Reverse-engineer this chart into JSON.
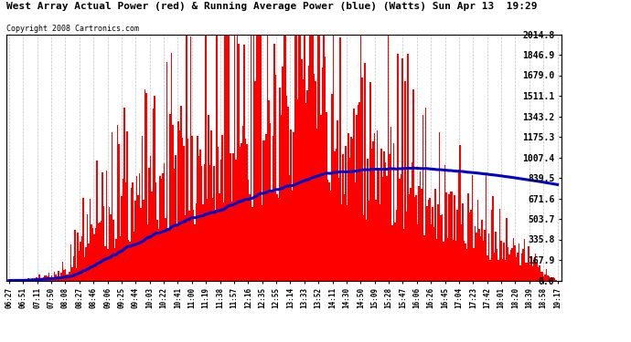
{
  "title": "West Array Actual Power (red) & Running Average Power (blue) (Watts) Sun Apr 13  19:29",
  "copyright": "Copyright 2008 Cartronics.com",
  "bg_color": "#ffffff",
  "plot_bg_color": "#ffffff",
  "grid_color": "#aaaaaa",
  "bar_color": "#ff0000",
  "line_color": "#0000cc",
  "yticks": [
    0.0,
    167.9,
    335.8,
    503.7,
    671.6,
    839.5,
    1007.4,
    1175.3,
    1343.2,
    1511.1,
    1679.0,
    1846.9,
    2014.8
  ],
  "ymax": 2014.8,
  "ymin": 0.0,
  "x_labels": [
    "06:27",
    "06:51",
    "07:11",
    "07:50",
    "08:08",
    "08:27",
    "08:46",
    "09:06",
    "09:25",
    "09:44",
    "10:03",
    "10:22",
    "10:41",
    "11:00",
    "11:19",
    "11:38",
    "11:57",
    "12:16",
    "12:35",
    "12:55",
    "13:14",
    "13:33",
    "13:52",
    "14:11",
    "14:30",
    "14:50",
    "15:09",
    "15:28",
    "15:47",
    "16:06",
    "16:26",
    "16:45",
    "17:04",
    "17:23",
    "17:42",
    "18:01",
    "18:20",
    "18:39",
    "18:58",
    "19:17"
  ],
  "n_points": 400
}
